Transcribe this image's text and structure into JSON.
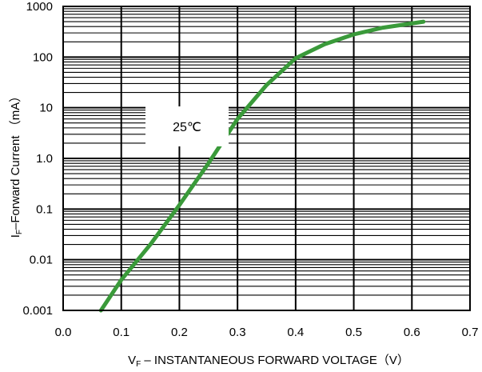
{
  "chart_data": {
    "type": "line",
    "title": "",
    "xlabel_main": "V",
    "xlabel_sub": "F",
    "xlabel_rest": " – INSTANTANEOUS FORWARD VOLTAGE（V）",
    "ylabel_main": "I",
    "ylabel_sub": "F",
    "ylabel_rest": "–Forward Current （mA）",
    "x_ticks": [
      "0.0",
      "0.1",
      "0.2",
      "0.3",
      "0.4",
      "0.5",
      "0.6",
      "0.7"
    ],
    "y_ticks": [
      "0.001",
      "0.01",
      "0.1",
      "1.0",
      "10",
      "100",
      "1000"
    ],
    "xlim": [
      0.0,
      0.7
    ],
    "ylim": [
      0.001,
      1000
    ],
    "y_scale": "log",
    "grid": true,
    "annotation": "25℃",
    "series": [
      {
        "color": "#3a9a3a",
        "x": [
          0.065,
          0.1,
          0.15,
          0.2,
          0.25,
          0.3,
          0.35,
          0.4,
          0.45,
          0.5,
          0.55,
          0.62
        ],
        "y": [
          0.001,
          0.004,
          0.02,
          0.12,
          0.8,
          6,
          28,
          95,
          180,
          280,
          380,
          500
        ]
      }
    ]
  }
}
